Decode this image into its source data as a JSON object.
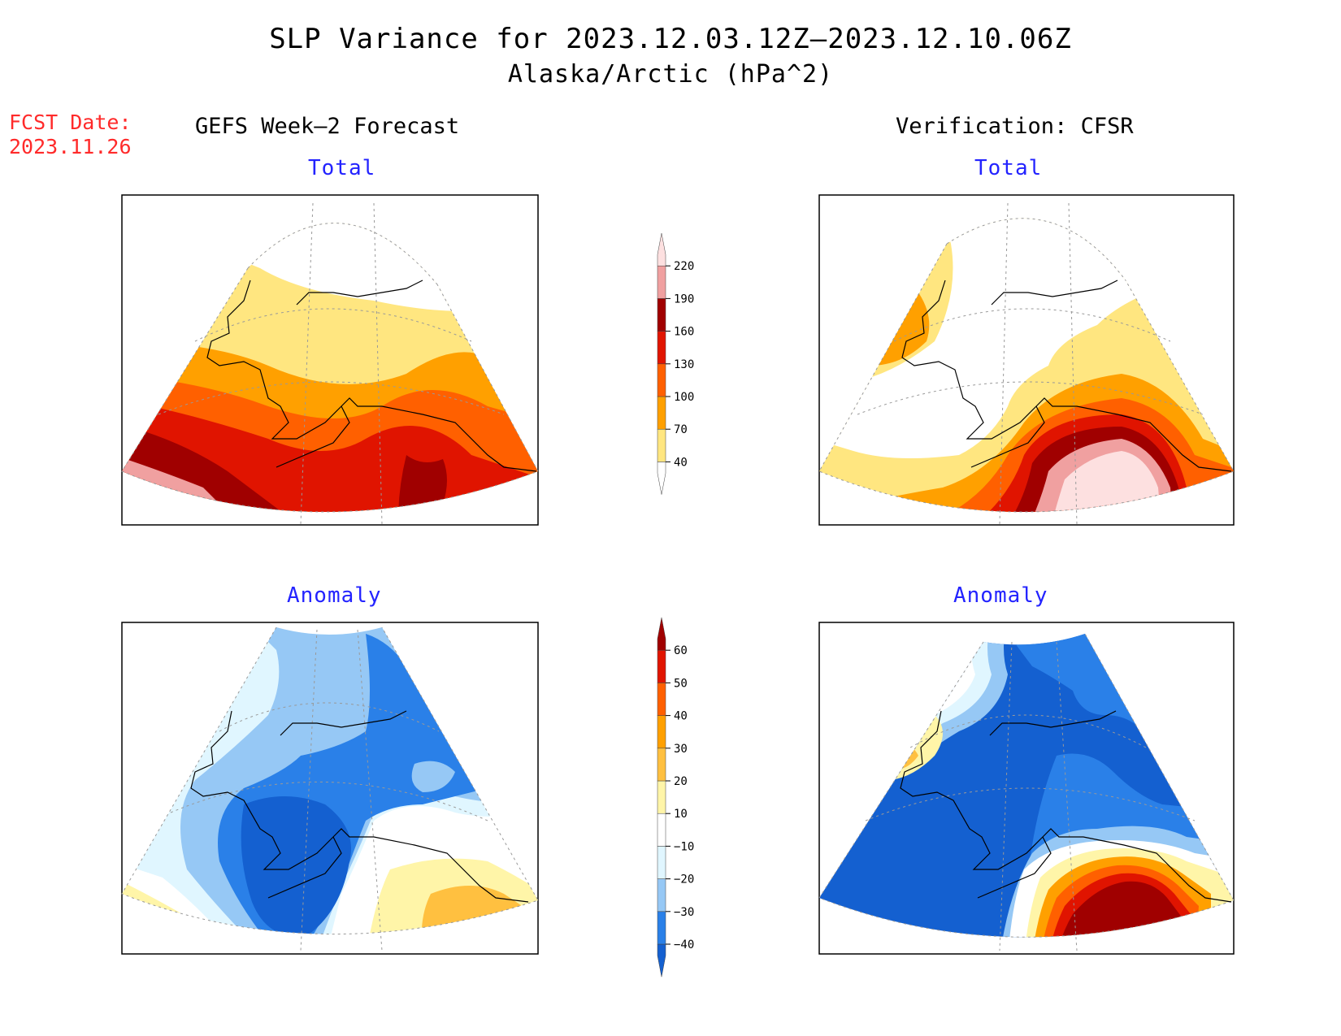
{
  "title": "SLP Variance for 2023.12.03.12Z–2023.12.10.06Z",
  "subtitle": "Alaska/Arctic (hPa^2)",
  "fcst_date": {
    "line1": "FCST Date:",
    "line2": "2023.11.26"
  },
  "columns": {
    "forecast": "GEFS Week–2 Forecast",
    "verification": "Verification: CFSR"
  },
  "panels": {
    "forecast_total": "Total",
    "verification_total": "Total",
    "forecast_anomaly": "Anomaly",
    "verification_anomaly": "Anomaly"
  },
  "colorbars": {
    "total": {
      "levels": [
        "40",
        "70",
        "100",
        "130",
        "160",
        "190",
        "220"
      ],
      "colors": [
        "#ffffff",
        "#ffe680",
        "#ffa000",
        "#ff6000",
        "#e01400",
        "#a00000",
        "#f0a0a0",
        "#fde0e0"
      ]
    },
    "anomaly": {
      "levels": [
        "−40",
        "−30",
        "−20",
        "−10",
        "10",
        "20",
        "30",
        "40",
        "50",
        "60"
      ],
      "colors": [
        "#1460d0",
        "#2a80e8",
        "#96c8f5",
        "#e0f6ff",
        "#ffffff",
        "#fff5a8",
        "#ffc040",
        "#ffa000",
        "#ff6000",
        "#e01400",
        "#a00000"
      ]
    }
  }
}
